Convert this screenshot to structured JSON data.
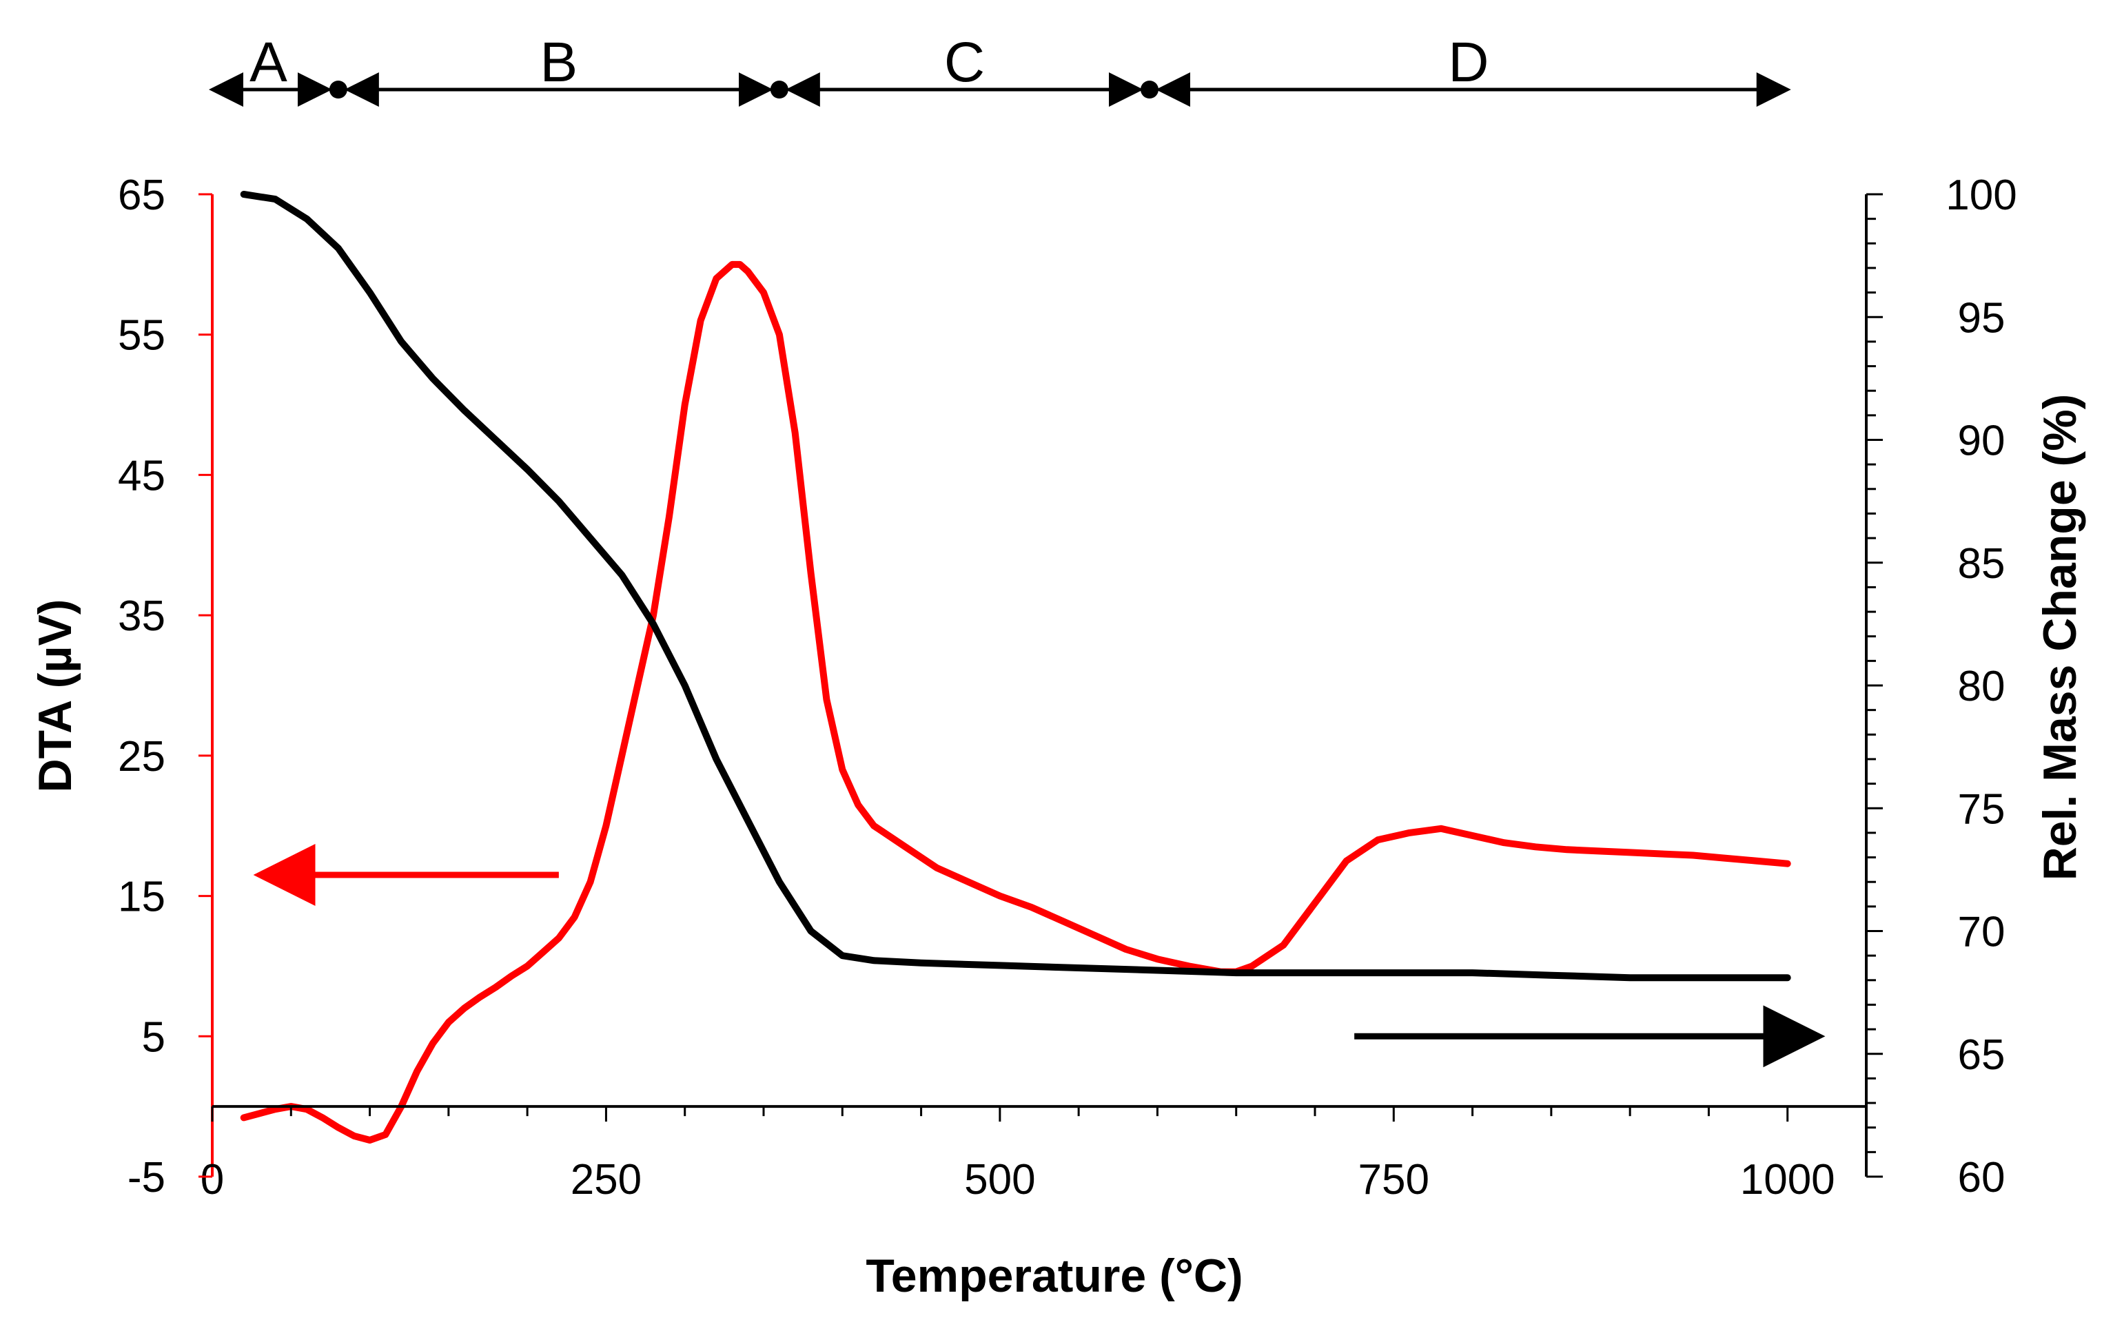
{
  "chart_data": {
    "type": "line",
    "title": "",
    "xlabel": "Temperature (°C)",
    "ylabel_left": "DTA (µV)",
    "ylabel_right": "Rel. Mass Change (%)",
    "xlim": [
      0,
      1050
    ],
    "ylim_left": [
      -5,
      65
    ],
    "ylim_right": [
      60,
      100
    ],
    "x_ticks": [
      0,
      250,
      500,
      750,
      1000
    ],
    "x_tick_labels": [
      "0",
      "250",
      "500",
      "750",
      "1000"
    ],
    "y_left_ticks": [
      -5,
      5,
      15,
      25,
      35,
      45,
      55,
      65
    ],
    "y_left_tick_labels": [
      "-5",
      "5",
      "15",
      "25",
      "35",
      "45",
      "55",
      "65"
    ],
    "y_right_ticks": [
      60,
      65,
      70,
      75,
      80,
      85,
      90,
      95,
      100
    ],
    "y_right_tick_labels": [
      "60",
      "65",
      "70",
      "75",
      "80",
      "85",
      "90",
      "95",
      "100"
    ],
    "colors": {
      "dta": "#ff0000",
      "mass": "#000000",
      "axis_left": "#ff0000",
      "axis_right": "#000000"
    },
    "series": [
      {
        "name": "DTA",
        "axis": "left",
        "color": "#ff0000",
        "x": [
          20,
          30,
          40,
          50,
          60,
          70,
          80,
          90,
          100,
          110,
          120,
          130,
          140,
          150,
          160,
          170,
          180,
          190,
          200,
          210,
          220,
          230,
          240,
          250,
          260,
          270,
          280,
          290,
          300,
          310,
          320,
          330,
          335,
          340,
          350,
          360,
          370,
          380,
          390,
          400,
          410,
          420,
          440,
          460,
          480,
          500,
          520,
          540,
          560,
          580,
          600,
          620,
          640,
          650,
          660,
          680,
          700,
          720,
          740,
          760,
          780,
          800,
          820,
          840,
          860,
          880,
          900,
          920,
          940,
          960,
          980,
          1000
        ],
        "y": [
          -0.8,
          -0.5,
          -0.2,
          0.0,
          -0.2,
          -0.8,
          -1.5,
          -2.1,
          -2.4,
          -2.0,
          0.0,
          2.5,
          4.5,
          6.0,
          7.0,
          7.8,
          8.5,
          9.3,
          10.0,
          11.0,
          12.0,
          13.5,
          16.0,
          20.0,
          25.0,
          30.0,
          35.0,
          42.0,
          50.0,
          56.0,
          59.0,
          60.0,
          60.0,
          59.5,
          58.0,
          55.0,
          48.0,
          38.0,
          29.0,
          24.0,
          21.5,
          20.0,
          18.5,
          17.0,
          16.0,
          15.0,
          14.2,
          13.2,
          12.2,
          11.2,
          10.5,
          10.0,
          9.6,
          9.6,
          10.0,
          11.5,
          14.5,
          17.5,
          19.0,
          19.5,
          19.8,
          19.3,
          18.8,
          18.5,
          18.3,
          18.2,
          18.1,
          18.0,
          17.9,
          17.7,
          17.5,
          17.3
        ]
      },
      {
        "name": "Rel. Mass Change",
        "axis": "right",
        "color": "#000000",
        "x": [
          20,
          40,
          60,
          80,
          100,
          120,
          140,
          160,
          180,
          200,
          220,
          240,
          260,
          280,
          300,
          320,
          340,
          360,
          380,
          400,
          420,
          450,
          500,
          550,
          600,
          650,
          700,
          750,
          800,
          850,
          900,
          950,
          1000
        ],
        "y": [
          100,
          99.8,
          99.0,
          97.8,
          96.0,
          94.0,
          92.5,
          91.2,
          90.0,
          88.8,
          87.5,
          86.0,
          84.5,
          82.5,
          80.0,
          77.0,
          74.5,
          72.0,
          70.0,
          69.0,
          68.8,
          68.7,
          68.6,
          68.5,
          68.4,
          68.3,
          68.3,
          68.3,
          68.3,
          68.2,
          68.1,
          68.1,
          68.1
        ]
      }
    ],
    "regions": {
      "labels": [
        "A",
        "B",
        "C",
        "D"
      ],
      "boundaries_x": [
        0,
        80,
        360,
        595,
        1000
      ]
    },
    "annotations": [
      {
        "name": "dta-axis-arrow",
        "direction": "left",
        "color": "#ff0000",
        "x_start": 220,
        "x_end": 30,
        "y_left": 16.5
      },
      {
        "name": "mass-axis-arrow",
        "direction": "right",
        "color": "#000000",
        "x_start": 725,
        "x_end": 1020,
        "y_left": 5
      }
    ]
  }
}
